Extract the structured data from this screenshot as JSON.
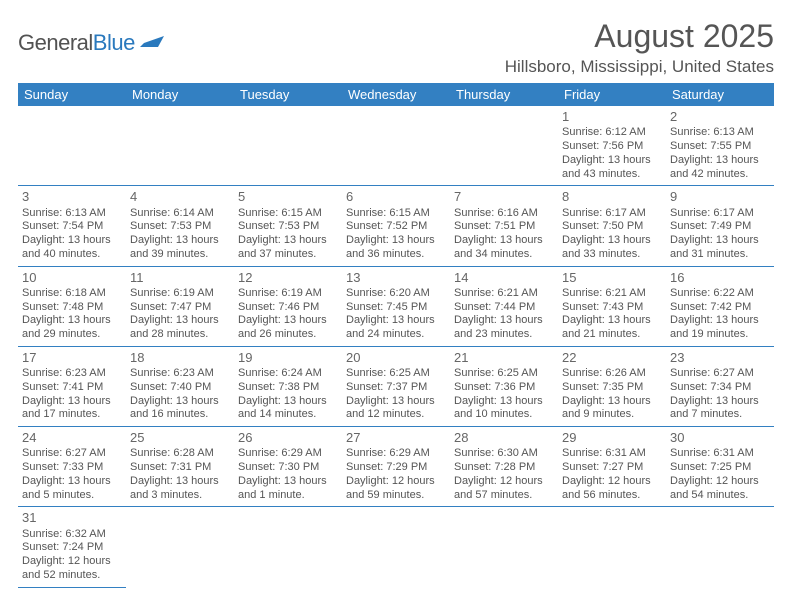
{
  "logo": {
    "part1": "General",
    "part2": "Blue"
  },
  "title": "August 2025",
  "location": "Hillsboro, Mississippi, United States",
  "colors": {
    "header_bg": "#3380c2",
    "header_fg": "#ffffff",
    "border": "#3380c2",
    "text": "#555555",
    "logo_blue": "#2a79bd"
  },
  "day_headers": [
    "Sunday",
    "Monday",
    "Tuesday",
    "Wednesday",
    "Thursday",
    "Friday",
    "Saturday"
  ],
  "weeks": [
    [
      null,
      null,
      null,
      null,
      null,
      {
        "n": "1",
        "sr": "Sunrise: 6:12 AM",
        "ss": "Sunset: 7:56 PM",
        "dl": "Daylight: 13 hours and 43 minutes."
      },
      {
        "n": "2",
        "sr": "Sunrise: 6:13 AM",
        "ss": "Sunset: 7:55 PM",
        "dl": "Daylight: 13 hours and 42 minutes."
      }
    ],
    [
      {
        "n": "3",
        "sr": "Sunrise: 6:13 AM",
        "ss": "Sunset: 7:54 PM",
        "dl": "Daylight: 13 hours and 40 minutes."
      },
      {
        "n": "4",
        "sr": "Sunrise: 6:14 AM",
        "ss": "Sunset: 7:53 PM",
        "dl": "Daylight: 13 hours and 39 minutes."
      },
      {
        "n": "5",
        "sr": "Sunrise: 6:15 AM",
        "ss": "Sunset: 7:53 PM",
        "dl": "Daylight: 13 hours and 37 minutes."
      },
      {
        "n": "6",
        "sr": "Sunrise: 6:15 AM",
        "ss": "Sunset: 7:52 PM",
        "dl": "Daylight: 13 hours and 36 minutes."
      },
      {
        "n": "7",
        "sr": "Sunrise: 6:16 AM",
        "ss": "Sunset: 7:51 PM",
        "dl": "Daylight: 13 hours and 34 minutes."
      },
      {
        "n": "8",
        "sr": "Sunrise: 6:17 AM",
        "ss": "Sunset: 7:50 PM",
        "dl": "Daylight: 13 hours and 33 minutes."
      },
      {
        "n": "9",
        "sr": "Sunrise: 6:17 AM",
        "ss": "Sunset: 7:49 PM",
        "dl": "Daylight: 13 hours and 31 minutes."
      }
    ],
    [
      {
        "n": "10",
        "sr": "Sunrise: 6:18 AM",
        "ss": "Sunset: 7:48 PM",
        "dl": "Daylight: 13 hours and 29 minutes."
      },
      {
        "n": "11",
        "sr": "Sunrise: 6:19 AM",
        "ss": "Sunset: 7:47 PM",
        "dl": "Daylight: 13 hours and 28 minutes."
      },
      {
        "n": "12",
        "sr": "Sunrise: 6:19 AM",
        "ss": "Sunset: 7:46 PM",
        "dl": "Daylight: 13 hours and 26 minutes."
      },
      {
        "n": "13",
        "sr": "Sunrise: 6:20 AM",
        "ss": "Sunset: 7:45 PM",
        "dl": "Daylight: 13 hours and 24 minutes."
      },
      {
        "n": "14",
        "sr": "Sunrise: 6:21 AM",
        "ss": "Sunset: 7:44 PM",
        "dl": "Daylight: 13 hours and 23 minutes."
      },
      {
        "n": "15",
        "sr": "Sunrise: 6:21 AM",
        "ss": "Sunset: 7:43 PM",
        "dl": "Daylight: 13 hours and 21 minutes."
      },
      {
        "n": "16",
        "sr": "Sunrise: 6:22 AM",
        "ss": "Sunset: 7:42 PM",
        "dl": "Daylight: 13 hours and 19 minutes."
      }
    ],
    [
      {
        "n": "17",
        "sr": "Sunrise: 6:23 AM",
        "ss": "Sunset: 7:41 PM",
        "dl": "Daylight: 13 hours and 17 minutes."
      },
      {
        "n": "18",
        "sr": "Sunrise: 6:23 AM",
        "ss": "Sunset: 7:40 PM",
        "dl": "Daylight: 13 hours and 16 minutes."
      },
      {
        "n": "19",
        "sr": "Sunrise: 6:24 AM",
        "ss": "Sunset: 7:38 PM",
        "dl": "Daylight: 13 hours and 14 minutes."
      },
      {
        "n": "20",
        "sr": "Sunrise: 6:25 AM",
        "ss": "Sunset: 7:37 PM",
        "dl": "Daylight: 13 hours and 12 minutes."
      },
      {
        "n": "21",
        "sr": "Sunrise: 6:25 AM",
        "ss": "Sunset: 7:36 PM",
        "dl": "Daylight: 13 hours and 10 minutes."
      },
      {
        "n": "22",
        "sr": "Sunrise: 6:26 AM",
        "ss": "Sunset: 7:35 PM",
        "dl": "Daylight: 13 hours and 9 minutes."
      },
      {
        "n": "23",
        "sr": "Sunrise: 6:27 AM",
        "ss": "Sunset: 7:34 PM",
        "dl": "Daylight: 13 hours and 7 minutes."
      }
    ],
    [
      {
        "n": "24",
        "sr": "Sunrise: 6:27 AM",
        "ss": "Sunset: 7:33 PM",
        "dl": "Daylight: 13 hours and 5 minutes."
      },
      {
        "n": "25",
        "sr": "Sunrise: 6:28 AM",
        "ss": "Sunset: 7:31 PM",
        "dl": "Daylight: 13 hours and 3 minutes."
      },
      {
        "n": "26",
        "sr": "Sunrise: 6:29 AM",
        "ss": "Sunset: 7:30 PM",
        "dl": "Daylight: 13 hours and 1 minute."
      },
      {
        "n": "27",
        "sr": "Sunrise: 6:29 AM",
        "ss": "Sunset: 7:29 PM",
        "dl": "Daylight: 12 hours and 59 minutes."
      },
      {
        "n": "28",
        "sr": "Sunrise: 6:30 AM",
        "ss": "Sunset: 7:28 PM",
        "dl": "Daylight: 12 hours and 57 minutes."
      },
      {
        "n": "29",
        "sr": "Sunrise: 6:31 AM",
        "ss": "Sunset: 7:27 PM",
        "dl": "Daylight: 12 hours and 56 minutes."
      },
      {
        "n": "30",
        "sr": "Sunrise: 6:31 AM",
        "ss": "Sunset: 7:25 PM",
        "dl": "Daylight: 12 hours and 54 minutes."
      }
    ],
    [
      {
        "n": "31",
        "sr": "Sunrise: 6:32 AM",
        "ss": "Sunset: 7:24 PM",
        "dl": "Daylight: 12 hours and 52 minutes."
      },
      null,
      null,
      null,
      null,
      null,
      null
    ]
  ]
}
